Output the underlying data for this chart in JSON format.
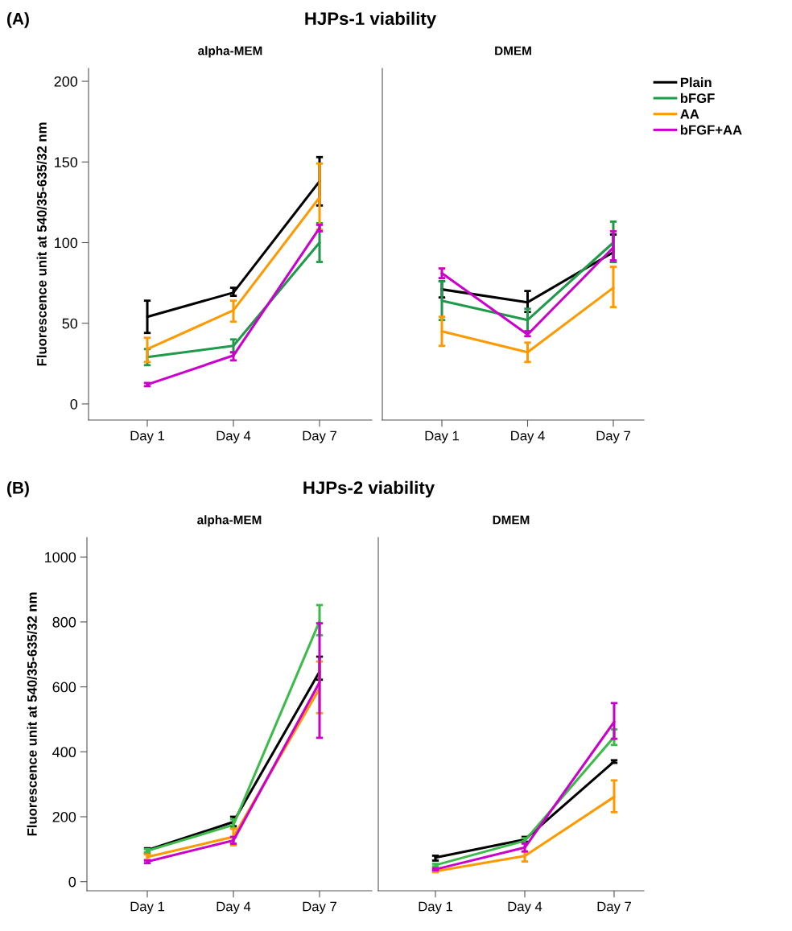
{
  "chart_data": [
    {
      "type": "line",
      "title": "HJPs-1 viability",
      "subtitle": "alpha-MEM",
      "ylabel": "Fluorescence unit at 540/35-635/32 nm",
      "annotations": [
        "(A)"
      ],
      "categories": [
        "Day 1",
        "Day 4",
        "Day 7"
      ],
      "ylim": [
        -10,
        208
      ],
      "yticks": [
        0,
        50,
        100,
        150,
        200
      ],
      "series": [
        {
          "color": "#000000",
          "values": [
            54,
            69,
            138
          ],
          "errors": [
            [
              44,
              64
            ],
            [
              67,
              72
            ],
            [
              123,
              153
            ]
          ]
        },
        {
          "color": "#1f9a4a",
          "values": [
            29,
            36,
            100
          ],
          "errors": [
            [
              24,
              34
            ],
            [
              32,
              40
            ],
            [
              88,
              112
            ]
          ]
        },
        {
          "color": "#ff9900",
          "values": [
            34,
            58,
            128
          ],
          "errors": [
            [
              26,
              41
            ],
            [
              51,
              64
            ],
            [
              108,
              149
            ]
          ]
        },
        {
          "color": "#cc00cc",
          "values": [
            12,
            30,
            109
          ],
          "errors": [
            [
              11,
              13
            ],
            [
              27,
              32
            ],
            [
              107,
              111
            ]
          ]
        }
      ]
    },
    {
      "type": "line",
      "subtitle": "DMEM",
      "categories": [
        "Day 1",
        "Day 4",
        "Day 7"
      ],
      "ylim": [
        -10,
        208
      ],
      "tick_labels": "x",
      "legend": "top right",
      "series": [
        {
          "name": "Plain",
          "color": "#000000",
          "values": [
            71,
            63,
            94
          ],
          "errors": [
            [
              66,
              76
            ],
            [
              57,
              70
            ],
            [
              88,
              105
            ]
          ]
        },
        {
          "name": "bFGF",
          "color": "#1f9a4a",
          "values": [
            64,
            52,
            100
          ],
          "errors": [
            [
              52,
              76
            ],
            [
              45,
              59
            ],
            [
              88,
              113
            ]
          ]
        },
        {
          "name": "AA",
          "color": "#ff9900",
          "values": [
            45,
            32,
            72
          ],
          "errors": [
            [
              36,
              54
            ],
            [
              26,
              38
            ],
            [
              60,
              85
            ]
          ]
        },
        {
          "name": "bFGF+AA",
          "color": "#cc00cc",
          "values": [
            81,
            43,
            97
          ],
          "errors": [
            [
              78,
              84
            ],
            [
              42,
              45
            ],
            [
              89,
              107
            ]
          ]
        }
      ]
    },
    {
      "type": "line",
      "title": "HJPs-2 viability",
      "subtitle": "alpha-MEM",
      "ylabel": "Fluorescence unit at 540/35-635/32 nm",
      "annotations": [
        "(B)"
      ],
      "categories": [
        "Day 1",
        "Day 4",
        "Day 7"
      ],
      "ylim": [
        -28,
        1060
      ],
      "yticks": [
        0,
        200,
        400,
        600,
        800,
        1000
      ],
      "series": [
        {
          "color": "#000000",
          "values": [
            97,
            184,
            647
          ],
          "errors": [
            [
              88,
              103
            ],
            [
              171,
              200
            ],
            [
              622,
              693
            ]
          ]
        },
        {
          "color": "#3dbb4a",
          "values": [
            95,
            175,
            802
          ],
          "errors": [
            [
              90,
              100
            ],
            [
              165,
              192
            ],
            [
              759,
              852
            ]
          ]
        },
        {
          "color": "#ff9900",
          "values": [
            76,
            138,
            595
          ],
          "errors": [
            [
              68,
              84
            ],
            [
              112,
              163
            ],
            [
              519,
              678
            ]
          ]
        },
        {
          "color": "#cc00cc",
          "values": [
            62,
            127,
            614
          ],
          "errors": [
            [
              57,
              65
            ],
            [
              117,
              138
            ],
            [
              443,
              796
            ]
          ]
        }
      ]
    },
    {
      "type": "line",
      "subtitle": "DMEM",
      "categories": [
        "Day 1",
        "Day 4",
        "Day 7"
      ],
      "ylim": [
        -28,
        1060
      ],
      "tick_labels": "x",
      "series": [
        {
          "color": "#000000",
          "values": [
            74,
            130,
            370
          ],
          "errors": [
            [
              65,
              80
            ],
            [
              123,
              138
            ],
            [
              366,
              374
            ]
          ]
        },
        {
          "color": "#3dbb4a",
          "values": [
            51,
            126,
            446
          ],
          "errors": [
            [
              47,
              55
            ],
            [
              117,
              134
            ],
            [
              421,
              469
            ]
          ]
        },
        {
          "color": "#ff9900",
          "values": [
            32,
            79,
            261
          ],
          "errors": [
            [
              29,
              35
            ],
            [
              62,
              93
            ],
            [
              214,
              312
            ]
          ]
        },
        {
          "color": "#cc00cc",
          "values": [
            38,
            105,
            492
          ],
          "errors": [
            [
              35,
              41
            ],
            [
              93,
              118
            ],
            [
              440,
              550
            ]
          ]
        }
      ]
    }
  ]
}
